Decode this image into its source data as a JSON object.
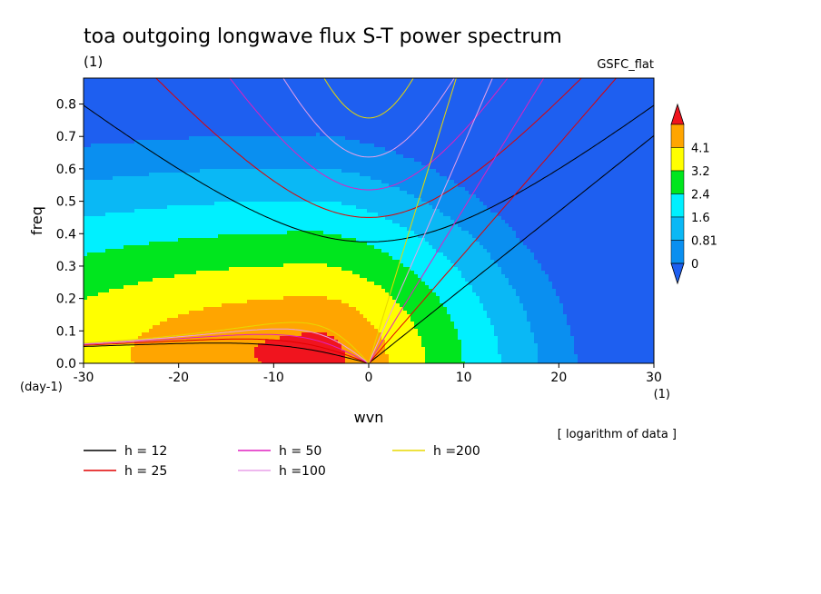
{
  "chart_data": {
    "type": "heatmap",
    "title": "toa outgoing longwave flux S-T power spectrum",
    "subtitle_left": "(1)",
    "subtitle_right": "GSFC_flat",
    "xlabel": "wvn",
    "ylabel": "freq",
    "x_unit": "(1)",
    "y_unit": "(day-1)",
    "note": "[ logarithm of data ]",
    "xlim": [
      -30,
      30
    ],
    "ylim": [
      0,
      0.88
    ],
    "x_ticks": [
      -30,
      -20,
      -10,
      0,
      10,
      20,
      30
    ],
    "y_ticks": [
      0.0,
      0.1,
      0.2,
      0.3,
      0.4,
      0.5,
      0.6,
      0.7,
      0.8
    ],
    "colorbar": {
      "labels": [
        "0",
        "0.81",
        "1.6",
        "2.4",
        "3.2",
        "4.1"
      ],
      "levels": [
        -0.81,
        0,
        0.81,
        1.6,
        2.4,
        3.2,
        4.1
      ],
      "colors": [
        "#1e5ff0",
        "#0a8ff0",
        "#0ab8f5",
        "#00f0ff",
        "#00e61e",
        "#ffff00",
        "#ffa500",
        "#f0141e"
      ]
    },
    "field": {
      "peak_x": -5,
      "peak_y": 0.03,
      "peak_value": 4.6,
      "decay_x_left": 0.07,
      "decay_x_right": 0.2,
      "decay_y": 8.0,
      "tilt": 0.18
    },
    "dispersion_legend": [
      {
        "label": "h = 12",
        "color": "#000000",
        "h": 12
      },
      {
        "label": "h = 25",
        "color": "#e00000",
        "h": 25
      },
      {
        "label": "h = 50",
        "color": "#e020c0",
        "h": 50
      },
      {
        "label": "h =100",
        "color": "#e8a0e8",
        "h": 100
      },
      {
        "label": "h =200",
        "color": "#e8d800",
        "h": 200
      }
    ]
  }
}
